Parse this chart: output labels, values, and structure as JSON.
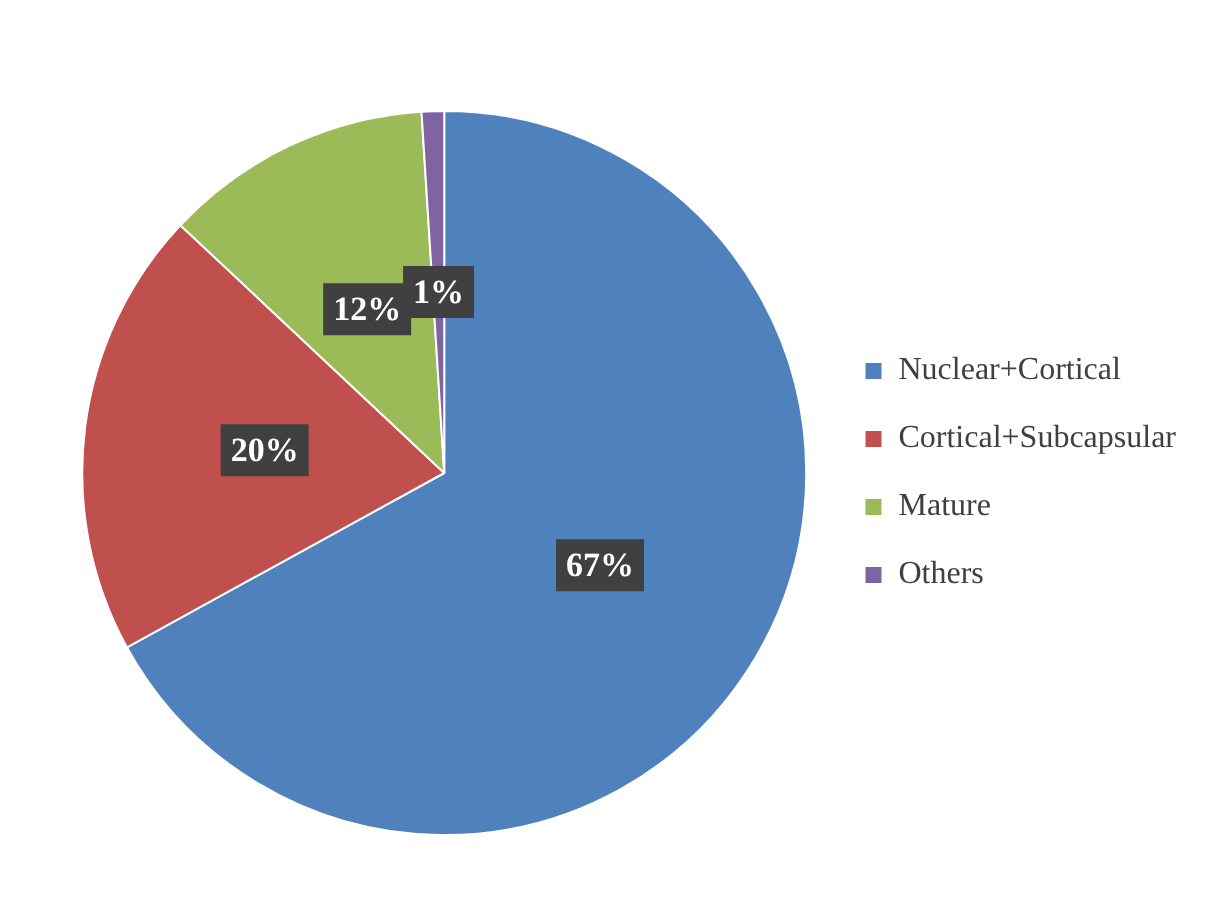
{
  "chart_data": {
    "type": "pie",
    "categories": [
      "Nuclear+Cortical",
      "Cortical+Subcapsular",
      "Mature",
      "Others"
    ],
    "values": [
      67,
      20,
      12,
      1
    ],
    "colors": [
      "#4f81bd",
      "#c0504d",
      "#9bbb59",
      "#8064a2"
    ],
    "value_labels": [
      "67%",
      "20%",
      "12%",
      "1%"
    ],
    "legend": "right"
  }
}
